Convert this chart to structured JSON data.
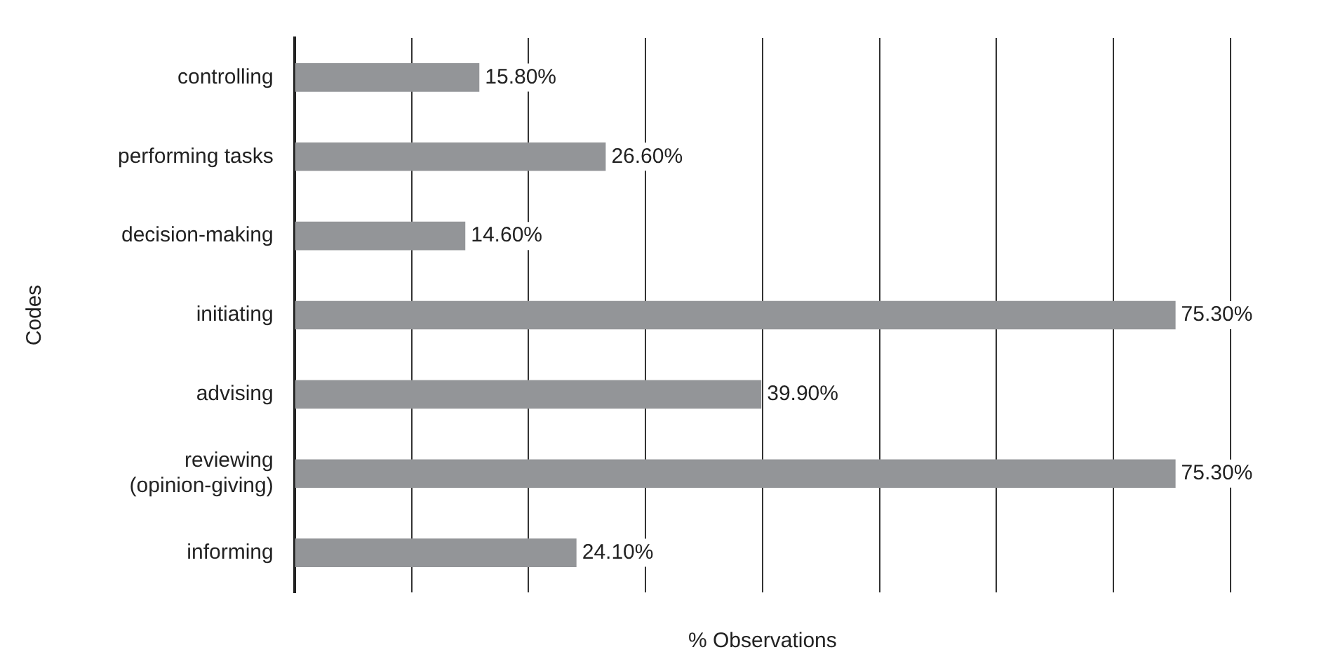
{
  "chart_data": {
    "type": "bar",
    "orientation": "horizontal",
    "ylabel": "Codes",
    "xlabel": "% Observations",
    "categories": [
      "controlling",
      "performing tasks",
      "decision-making",
      "initiating",
      "advising",
      "reviewing\n(opinion-giving)",
      "informing"
    ],
    "values": [
      15.8,
      26.6,
      14.6,
      75.3,
      39.9,
      75.3,
      24.1
    ],
    "value_labels": [
      "15.80%",
      "26.60%",
      "14.60%",
      "75.30%",
      "39.90%",
      "75.30%",
      "24.10%"
    ],
    "color": "#939598",
    "xlim": [
      0,
      80
    ],
    "xticks": [
      {
        "value": 0,
        "label": null
      },
      {
        "value": 10,
        "label": null
      },
      {
        "value": 20,
        "label": null
      },
      {
        "value": 30,
        "label": null
      },
      {
        "value": 40,
        "label": null
      },
      {
        "value": 50,
        "label": null
      },
      {
        "value": 60,
        "label": null
      },
      {
        "value": 70,
        "label": null
      },
      {
        "value": 80,
        "label": null
      }
    ],
    "grid": "x",
    "tick_labels": "y",
    "legend": false
  }
}
